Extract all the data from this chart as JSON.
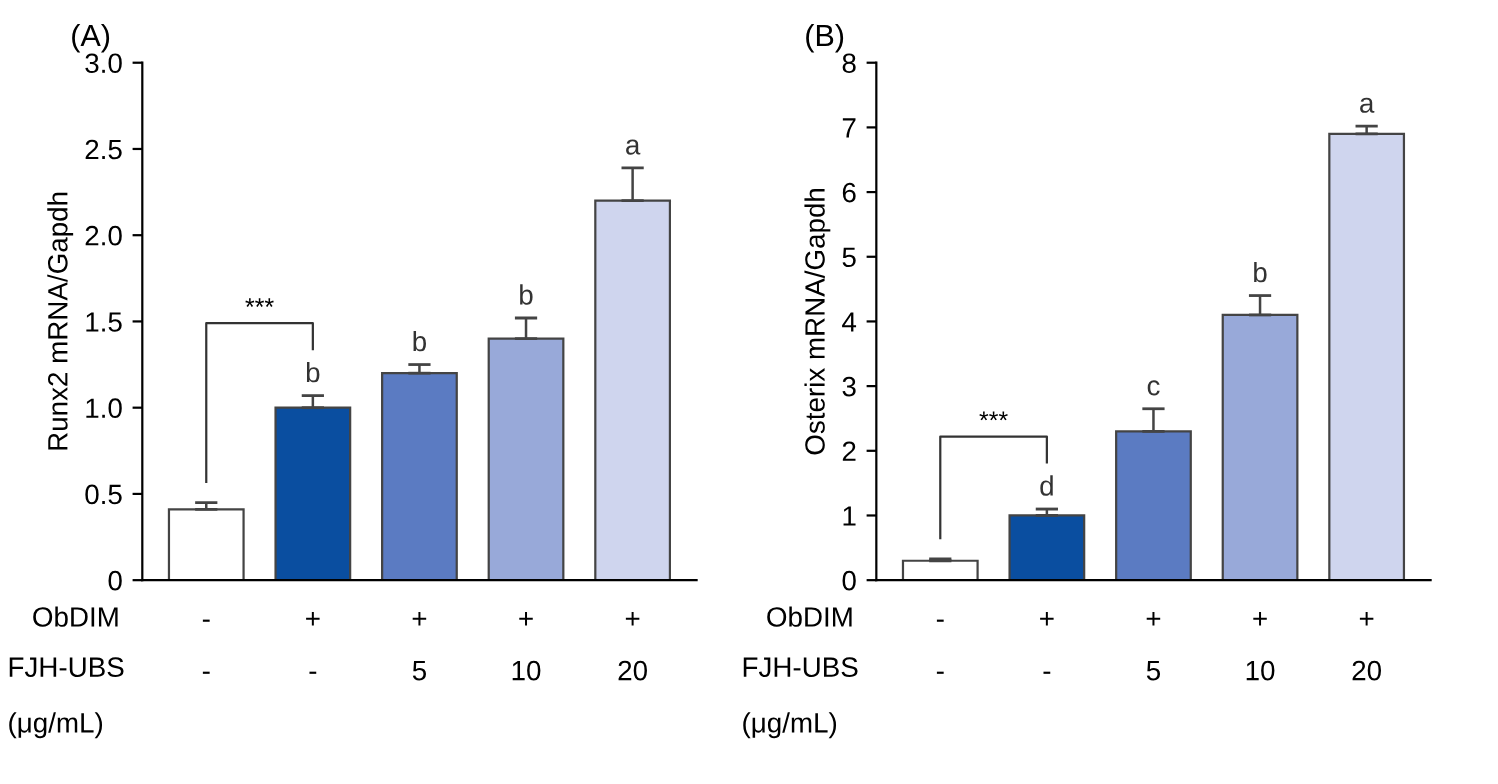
{
  "chart_data": [
    {
      "type": "bar",
      "title": "(A)",
      "ylabel": "Runx2 mRNA/Gapdh",
      "categories": [
        "-\n-",
        "+\n-",
        "+\n5",
        "+\n10",
        "+\n20"
      ],
      "values": [
        0.41,
        1.0,
        1.2,
        1.4,
        2.2
      ],
      "errors": [
        0.04,
        0.07,
        0.05,
        0.12,
        0.19
      ],
      "colors": [
        "#ffffff",
        "#0a4ea0",
        "#5b7bc2",
        "#98a9d9",
        "#cfd5ee"
      ],
      "value_labels": [
        null,
        "b",
        "b",
        "b",
        "a"
      ],
      "annotations": [
        "***",
        "ObDIM",
        "FJH-UBS",
        "(μg/mL)"
      ],
      "ylim": [
        0,
        3.0
      ],
      "yticks": [
        0,
        0.5,
        {
          "value": 1,
          "label": "1.0"
        },
        1.5,
        {
          "value": 2,
          "label": "2.0"
        },
        2.5,
        {
          "value": 3,
          "label": "3.0"
        }
      ],
      "grid": false
    },
    {
      "type": "bar",
      "title": "(B)",
      "ylabel": "Osterix mRNA/Gapdh",
      "categories": [
        "-\n-",
        "+\n-",
        "+\n5",
        "+\n10",
        "+\n20"
      ],
      "values": [
        0.3,
        1.0,
        2.3,
        4.1,
        6.9
      ],
      "errors": [
        0.03,
        0.1,
        0.35,
        0.3,
        0.12
      ],
      "colors": [
        "#ffffff",
        "#0a4ea0",
        "#5b7bc2",
        "#98a9d9",
        "#cfd5ee"
      ],
      "value_labels": [
        null,
        "d",
        "c",
        "b",
        "a"
      ],
      "annotations": [
        "***",
        "ObDIM",
        "FJH-UBS",
        "(μg/mL)"
      ],
      "ylim": [
        0,
        8
      ],
      "yticks": [
        0,
        1,
        2,
        3,
        4,
        5,
        6,
        7,
        8
      ],
      "grid": false
    }
  ]
}
